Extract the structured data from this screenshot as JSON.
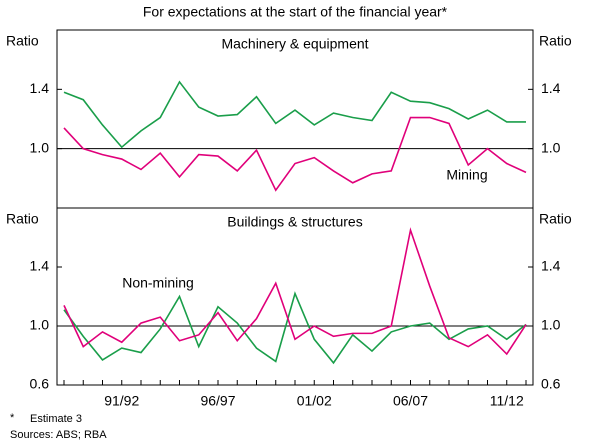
{
  "title": "For expectations at the start of the financial year*",
  "footnote_marker": "*",
  "footnote": "Estimate 3",
  "sources": "Sources: ABS; RBA",
  "chart_data": [
    {
      "type": "line",
      "title": "Machinery & equipment",
      "ylabel": "Ratio",
      "y2label": "Ratio",
      "ylim": [
        0.6,
        1.8
      ],
      "yticks": [
        {
          "value": 1,
          "label": "1.0"
        },
        {
          "value": 1.4,
          "label": "1.4"
        }
      ],
      "reference_line": 1,
      "annotation": "Mining",
      "series": [
        {
          "name": "Non-mining",
          "color": "#1a9e4a",
          "values": [
            1.38,
            1.33,
            1.16,
            1.01,
            1.12,
            1.21,
            1.45,
            1.28,
            1.22,
            1.23,
            1.35,
            1.17,
            1.26,
            1.16,
            1.24,
            1.21,
            1.19,
            1.38,
            1.32,
            1.31,
            1.27,
            1.2,
            1.26,
            1.18,
            1.18
          ]
        },
        {
          "name": "Mining",
          "color": "#e0007a",
          "values": [
            1.14,
            1.0,
            0.96,
            0.93,
            0.86,
            0.97,
            0.81,
            0.96,
            0.95,
            0.85,
            0.99,
            0.72,
            0.9,
            0.94,
            0.85,
            0.77,
            0.83,
            0.85,
            1.21,
            1.21,
            1.17,
            0.89,
            1.0,
            0.9,
            0.84
          ]
        }
      ]
    },
    {
      "type": "line",
      "title": "Buildings & structures",
      "ylabel": "Ratio",
      "y2label": "Ratio",
      "ylim": [
        0.6,
        1.8
      ],
      "yticks": [
        {
          "value": 0.6,
          "label": "0.6"
        },
        {
          "value": 1,
          "label": "1.0"
        },
        {
          "value": 1.4,
          "label": "1.4"
        }
      ],
      "reference_line": 1,
      "annotation": "Non-mining",
      "categories": [
        null,
        null,
        null,
        "91/92",
        null,
        null,
        null,
        null,
        "96/97",
        null,
        null,
        null,
        null,
        "01/02",
        null,
        null,
        null,
        null,
        "06/07",
        null,
        null,
        null,
        null,
        "11/12",
        null
      ],
      "series": [
        {
          "name": "Non-mining",
          "color": "#1a9e4a",
          "values": [
            1.11,
            0.93,
            0.77,
            0.85,
            0.82,
            0.98,
            1.2,
            0.86,
            1.13,
            1.02,
            0.85,
            0.76,
            1.22,
            0.91,
            0.75,
            0.94,
            0.83,
            0.96,
            1.0,
            1.02,
            0.91,
            0.98,
            1.0,
            0.91,
            1.01
          ]
        },
        {
          "name": "Mining",
          "color": "#e0007a",
          "values": [
            1.14,
            0.86,
            0.96,
            0.89,
            1.02,
            1.06,
            0.9,
            0.94,
            1.09,
            0.9,
            1.05,
            1.29,
            0.91,
            1.0,
            0.93,
            0.95,
            0.95,
            1.0,
            1.65,
            1.27,
            0.92,
            0.86,
            0.94,
            0.81,
            1.01
          ]
        }
      ]
    }
  ]
}
